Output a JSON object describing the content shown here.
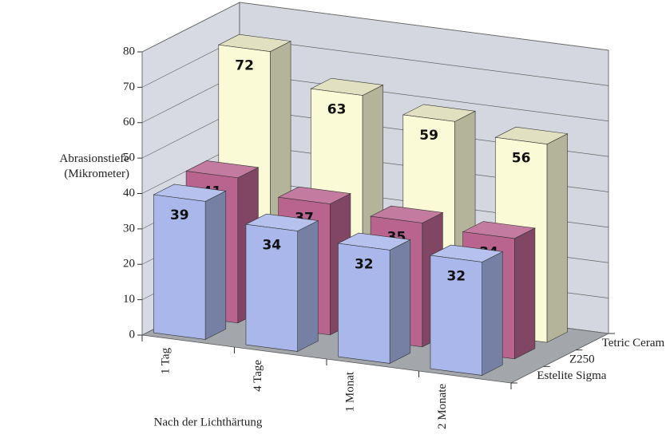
{
  "chart_data": {
    "type": "bar3d",
    "y_label": "Abrasionstiefe (Mikrometer)",
    "x_label": "Nach der Lichthärtung",
    "categories": [
      "1 Tag",
      "4 Tage",
      "1 Monat",
      "2 Monate"
    ],
    "series": [
      {
        "name": "Estelite Sigma",
        "color": "#a9b7ea",
        "values": [
          39,
          34,
          32,
          32
        ]
      },
      {
        "name": "Z250",
        "color": "#b8648e",
        "values": [
          41,
          37,
          35,
          34
        ]
      },
      {
        "name": "Tetric Ceram",
        "color": "#fafad6",
        "values": [
          72,
          63,
          59,
          56
        ]
      }
    ],
    "ylim": [
      0,
      80
    ],
    "yticks": [
      0,
      10,
      20,
      30,
      40,
      50,
      60,
      70,
      80
    ],
    "grid": true
  }
}
